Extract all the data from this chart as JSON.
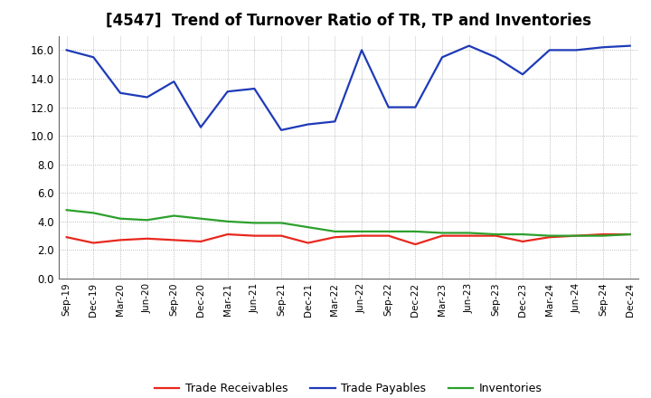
{
  "title": "[4547]  Trend of Turnover Ratio of TR, TP and Inventories",
  "x_labels": [
    "Sep-19",
    "Dec-19",
    "Mar-20",
    "Jun-20",
    "Sep-20",
    "Dec-20",
    "Mar-21",
    "Jun-21",
    "Sep-21",
    "Dec-21",
    "Mar-22",
    "Jun-22",
    "Sep-22",
    "Dec-22",
    "Mar-23",
    "Jun-23",
    "Sep-23",
    "Dec-23",
    "Mar-24",
    "Jun-24",
    "Sep-24",
    "Dec-24"
  ],
  "trade_receivables": [
    2.9,
    2.5,
    2.7,
    2.8,
    2.7,
    2.6,
    3.1,
    3.0,
    3.0,
    2.5,
    2.9,
    3.0,
    3.0,
    2.4,
    3.0,
    3.0,
    3.0,
    2.6,
    2.9,
    3.0,
    3.1,
    3.1
  ],
  "trade_payables": [
    16.0,
    15.5,
    13.0,
    12.7,
    13.8,
    10.6,
    13.1,
    13.3,
    10.4,
    10.8,
    11.0,
    16.0,
    12.0,
    12.0,
    15.5,
    16.3,
    15.5,
    14.3,
    16.0,
    16.0,
    16.2,
    16.3
  ],
  "inventories": [
    4.8,
    4.6,
    4.2,
    4.1,
    4.4,
    4.2,
    4.0,
    3.9,
    3.9,
    3.6,
    3.3,
    3.3,
    3.3,
    3.3,
    3.2,
    3.2,
    3.1,
    3.1,
    3.0,
    3.0,
    3.0,
    3.1
  ],
  "ylim": [
    0.0,
    17.0
  ],
  "yticks": [
    0.0,
    2.0,
    4.0,
    6.0,
    8.0,
    10.0,
    12.0,
    14.0,
    16.0
  ],
  "color_tr": "#e8281e",
  "color_tp": "#1e3ab8",
  "color_inv": "#2ca02c",
  "bg_color": "#ffffff",
  "grid_color": "#aaaaaa",
  "title_fontsize": 12,
  "legend_labels": [
    "Trade Receivables",
    "Trade Payables",
    "Inventories"
  ]
}
